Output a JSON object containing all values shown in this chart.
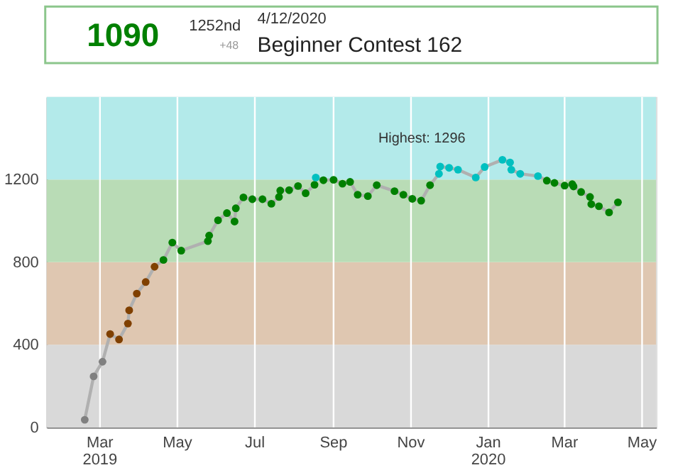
{
  "chart_data": {
    "type": "line",
    "title": "Beginner Contest 162",
    "subtitle": "4/12/2020",
    "annotations": [
      "1090",
      "1252nd",
      "+48",
      {
        "text": "Highest: 1296",
        "x": "2020-01-12",
        "y": 1296
      }
    ],
    "x": [
      "2019-02-17",
      "2019-02-24",
      "2019-03-03",
      "2019-03-09",
      "2019-03-16",
      "2019-03-23",
      "2019-03-24",
      "2019-03-30",
      "2019-04-06",
      "2019-04-13",
      "2019-04-20",
      "2019-04-27",
      "2019-05-04",
      "2019-05-25",
      "2019-05-26",
      "2019-06-02",
      "2019-06-09",
      "2019-06-15",
      "2019-06-16",
      "2019-06-22",
      "2019-06-29",
      "2019-07-07",
      "2019-07-14",
      "2019-07-20",
      "2019-07-21",
      "2019-07-28",
      "2019-08-04",
      "2019-08-10",
      "2019-08-17",
      "2019-08-18",
      "2019-08-24",
      "2019-09-01",
      "2019-09-08",
      "2019-09-14",
      "2019-09-20",
      "2019-09-28",
      "2019-10-05",
      "2019-10-19",
      "2019-10-26",
      "2019-11-02",
      "2019-11-09",
      "2019-11-16",
      "2019-11-23",
      "2019-11-24",
      "2019-12-01",
      "2019-12-08",
      "2019-12-22",
      "2019-12-29",
      "2020-01-12",
      "2020-01-18",
      "2020-01-19",
      "2020-01-26",
      "2020-02-09",
      "2020-02-16",
      "2020-02-22",
      "2020-03-01",
      "2020-03-07",
      "2020-03-08",
      "2020-03-14",
      "2020-03-21",
      "2020-03-22",
      "2020-03-28",
      "2020-04-05",
      "2020-04-12"
    ],
    "series": [
      {
        "color": "#b0b0b0",
        "values": [
          37,
          247,
          318,
          452,
          426,
          503,
          567,
          648,
          704,
          778,
          811,
          895,
          856,
          902,
          929,
          1003,
          1038,
          997,
          1061,
          1114,
          1105,
          1105,
          1083,
          1116,
          1147,
          1149,
          1169,
          1134,
          1175,
          1210,
          1197,
          1199,
          1180,
          1189,
          1127,
          1120,
          1173,
          1144,
          1127,
          1107,
          1098,
          1173,
          1228,
          1263,
          1257,
          1248,
          1210,
          1261,
          1296,
          1283,
          1248,
          1228,
          1217,
          1195,
          1184,
          1171,
          1178,
          1167,
          1140,
          1116,
          1081,
          1071,
          1041,
          1090
        ],
        "colors": [
          "#808080",
          "#808080",
          "#808080",
          "#804000",
          "#804000",
          "#804000",
          "#804000",
          "#804000",
          "#804000",
          "#804000",
          "#008000",
          "#008000",
          "#008000",
          "#008000",
          "#008000",
          "#008000",
          "#008000",
          "#008000",
          "#008000",
          "#008000",
          "#008000",
          "#008000",
          "#008000",
          "#008000",
          "#008000",
          "#008000",
          "#008000",
          "#008000",
          "#008000",
          "#00c0c0",
          "#008000",
          "#008000",
          "#008000",
          "#008000",
          "#008000",
          "#008000",
          "#008000",
          "#008000",
          "#008000",
          "#008000",
          "#008000",
          "#008000",
          "#00c0c0",
          "#00c0c0",
          "#00c0c0",
          "#00c0c0",
          "#00c0c0",
          "#00c0c0",
          "#00c0c0",
          "#00c0c0",
          "#00c0c0",
          "#00c0c0",
          "#00c0c0",
          "#008000",
          "#008000",
          "#008000",
          "#008000",
          "#008000",
          "#008000",
          "#008000",
          "#008000",
          "#008000",
          "#008000",
          "#008000"
        ]
      }
    ],
    "bands": [
      {
        "axis": "y",
        "from": 0,
        "to": 400,
        "color": "#d9d9d9"
      },
      {
        "axis": "y",
        "from": 400,
        "to": 800,
        "color": "#dfc7b1"
      },
      {
        "axis": "y",
        "from": 800,
        "to": 1200,
        "color": "#b9dcb6"
      },
      {
        "axis": "y",
        "from": 1200,
        "to": 1600,
        "color": "#b3eaea"
      }
    ],
    "xlim": [
      "2019-01-18",
      "2020-05-12"
    ],
    "xticks": [
      {
        "value": "2019-03-01",
        "label": "Mar\n2019"
      },
      {
        "value": "2019-05-01",
        "label": "May"
      },
      {
        "value": "2019-07-01",
        "label": "Jul"
      },
      {
        "value": "2019-09-01",
        "label": "Sep"
      },
      {
        "value": "2019-11-01",
        "label": "Nov"
      },
      {
        "value": "2020-01-01",
        "label": "Jan\n2020"
      },
      {
        "value": "2020-03-01",
        "label": "Mar"
      },
      {
        "value": "2020-05-01",
        "label": "May"
      }
    ],
    "ylim": [
      0,
      1600
    ],
    "yticks": [
      0,
      400,
      800,
      1200
    ],
    "grid": "x",
    "marker": "circle",
    "line_style": "solid"
  }
}
